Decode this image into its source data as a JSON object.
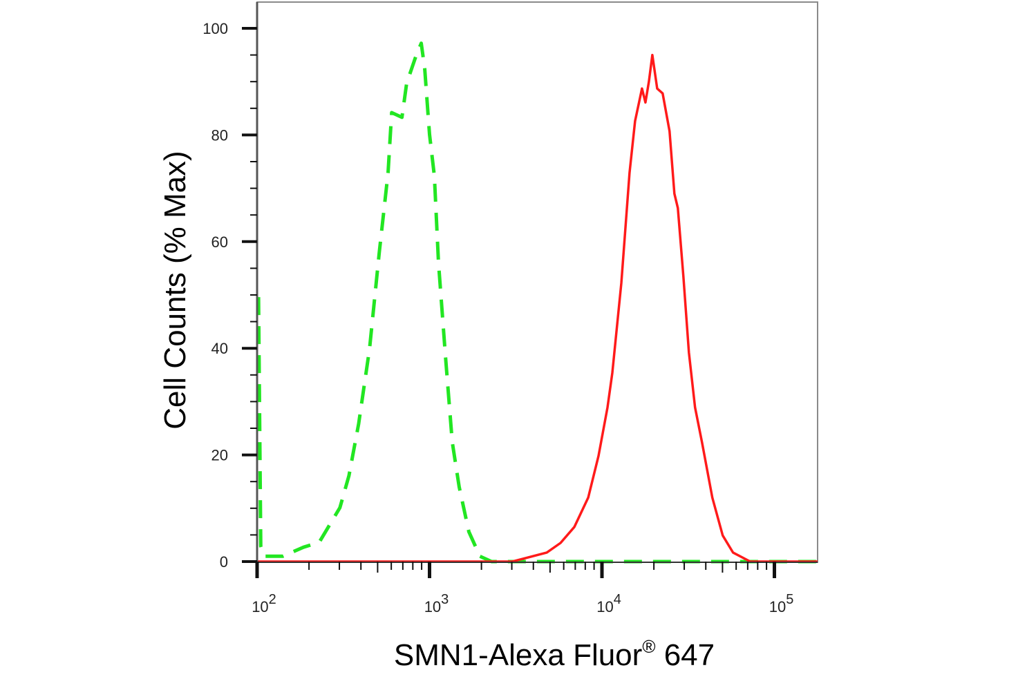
{
  "chart_data": {
    "type": "line",
    "title": "",
    "xlabel": "SMN1-Alexa Fluor",
    "xlabel_superscript": "®",
    "xlabel_suffix": " 647",
    "ylabel": "Cell Counts (% Max)",
    "x_scale": "log",
    "xlim": [
      100,
      178000
    ],
    "ylim": [
      0,
      100
    ],
    "x_ticks": [
      {
        "value": 100,
        "base": "10",
        "exp": "2"
      },
      {
        "value": 1000,
        "base": "10",
        "exp": "3"
      },
      {
        "value": 10000,
        "base": "10",
        "exp": "4"
      },
      {
        "value": 100000,
        "base": "10",
        "exp": "5"
      }
    ],
    "y_ticks": [
      0,
      20,
      40,
      60,
      80,
      100
    ],
    "y_minor_step": 5,
    "grid": false,
    "legend": "none",
    "series": [
      {
        "color": "#22e622",
        "style": "dashed",
        "x": [
          102,
          105,
          110,
          141,
          186,
          229,
          302,
          341,
          388,
          449,
          511,
          575,
          603,
          692,
          737,
          832,
          895,
          937,
          1000,
          1067,
          1127,
          1236,
          1355,
          1486,
          1690,
          1960,
          2290,
          178000
        ],
        "y": [
          49.6,
          2.9,
          1.0,
          1.0,
          2.7,
          3.6,
          10.1,
          16.1,
          25.8,
          39.9,
          58.0,
          72.9,
          84.2,
          83.3,
          89.7,
          94.7,
          97.2,
          92.5,
          80.1,
          72.3,
          56.0,
          38.6,
          22.4,
          14.0,
          5.6,
          1.0,
          0,
          0
        ]
      },
      {
        "color": "#ff1a1a",
        "style": "solid",
        "x": [
          100,
          3020,
          4786,
          5754,
          6918,
          8318,
          9550,
          10765,
          11482,
          12942,
          14454,
          15560,
          17061,
          17865,
          18707,
          19588,
          20893,
          22491,
          24660,
          26303,
          27542,
          29648,
          31915,
          34674,
          38019,
          43652,
          50119,
          57544,
          72444,
          178000
        ],
        "y": [
          0,
          0,
          1.7,
          3.5,
          6.5,
          12,
          19.8,
          28.9,
          35.4,
          52.2,
          72.9,
          82.6,
          88.7,
          86.1,
          90,
          95,
          88.7,
          87.8,
          80.7,
          69,
          66.3,
          53.5,
          39.2,
          28.9,
          22.4,
          12,
          4.9,
          1.7,
          0,
          0
        ]
      }
    ]
  }
}
